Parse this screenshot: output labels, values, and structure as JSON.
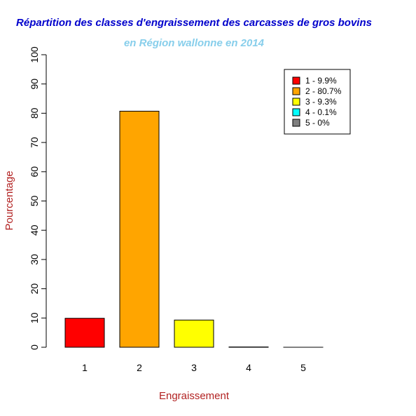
{
  "chart_data": {
    "type": "bar",
    "title": "Répartition des classes d'engraissement des carcasses de gros bovins",
    "subtitle": "en Région wallonne en 2014",
    "xlabel": "Engraissement",
    "ylabel": "Pourcentage",
    "categories": [
      "1",
      "2",
      "3",
      "4",
      "5"
    ],
    "values": [
      9.9,
      80.7,
      9.3,
      0.1,
      0.0
    ],
    "bar_colors": [
      "#ff0000",
      "#ffa500",
      "#ffff00",
      "#00ffff",
      "#808080"
    ],
    "ylim": [
      0,
      100
    ],
    "yticks": [
      "0",
      "10",
      "20",
      "30",
      "40",
      "50",
      "60",
      "70",
      "80",
      "90",
      "100"
    ],
    "legend": {
      "position": "top-right",
      "entries": [
        "1 - 9.9%",
        "2 - 80.7%",
        "3 - 9.3%",
        "4 - 0.1%",
        "5 - 0%"
      ]
    },
    "colors": {
      "title": "#0000cc",
      "subtitle": "#87ceeb",
      "axis_label": "#b22222"
    },
    "grid": false
  }
}
